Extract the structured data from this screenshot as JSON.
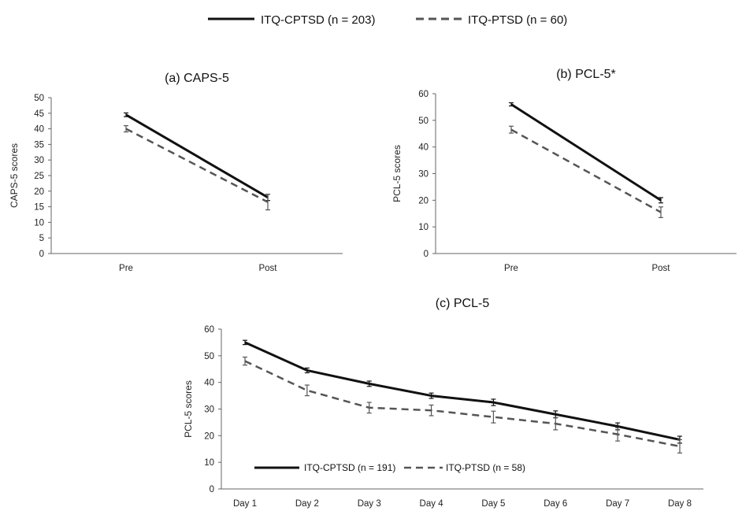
{
  "colors": {
    "solid": "#111111",
    "dashed": "#555555",
    "axis": "#666666"
  },
  "top_legend": {
    "solid_label": "ITQ-CPTSD (n = 203)",
    "dashed_label": "ITQ-PTSD (n = 60)"
  },
  "chart_data": [
    {
      "type": "line",
      "title": "(a) CAPS-5",
      "xlabel": "",
      "ylabel": "CAPS-5 scores",
      "categories": [
        "Pre",
        "Post"
      ],
      "ylim": [
        0,
        50
      ],
      "yticks": [
        0,
        5,
        10,
        15,
        20,
        25,
        30,
        35,
        40,
        45,
        50
      ],
      "series": [
        {
          "name": "ITQ-CPTSD (n = 203)",
          "style": "solid",
          "values": [
            44.5,
            18
          ],
          "errors": [
            0.6,
            1.0
          ]
        },
        {
          "name": "ITQ-PTSD (n = 60)",
          "style": "dashed",
          "values": [
            40,
            16.5
          ],
          "errors": [
            1.0,
            2.5
          ]
        }
      ]
    },
    {
      "type": "line",
      "title": "(b) PCL-5*",
      "xlabel": "",
      "ylabel": "PCL-5 scores",
      "categories": [
        "Pre",
        "Post"
      ],
      "ylim": [
        0,
        60
      ],
      "yticks": [
        0,
        10,
        20,
        30,
        40,
        50,
        60
      ],
      "series": [
        {
          "name": "ITQ-CPTSD (n = 203)",
          "style": "solid",
          "values": [
            56,
            20
          ],
          "errors": [
            0.6,
            1.0
          ]
        },
        {
          "name": "ITQ-PTSD (n = 60)",
          "style": "dashed",
          "values": [
            46.5,
            15.5
          ],
          "errors": [
            1.3,
            2.0
          ]
        }
      ]
    },
    {
      "type": "line",
      "title": "(c) PCL-5",
      "xlabel": "",
      "ylabel": "PCL-5 scores",
      "categories": [
        "Day 1",
        "Day 2",
        "Day 3",
        "Day 4",
        "Day 5",
        "Day 6",
        "Day 7",
        "Day 8"
      ],
      "ylim": [
        0,
        60
      ],
      "yticks": [
        0,
        10,
        20,
        30,
        40,
        50,
        60
      ],
      "legend": "bottom-inside",
      "series": [
        {
          "name": "ITQ-CPTSD (n = 191)",
          "style": "solid",
          "values": [
            55,
            44.5,
            39.5,
            35,
            32.5,
            28,
            23.5,
            18.5
          ],
          "errors": [
            0.8,
            0.9,
            1.0,
            1.0,
            1.2,
            1.3,
            1.3,
            1.3
          ]
        },
        {
          "name": "ITQ-PTSD (n = 58)",
          "style": "dashed",
          "values": [
            48,
            37,
            30.5,
            29.5,
            27,
            24.5,
            20.5,
            16
          ],
          "errors": [
            1.5,
            2.0,
            2.0,
            2.0,
            2.2,
            2.3,
            2.5,
            2.5
          ]
        }
      ]
    }
  ]
}
